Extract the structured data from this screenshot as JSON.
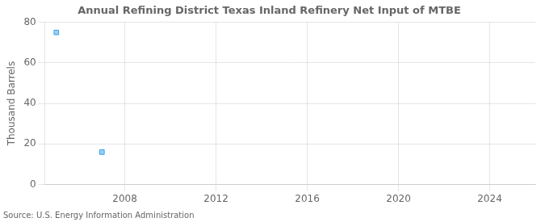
{
  "chart_data": {
    "type": "scatter",
    "title": "Annual Refining District Texas Inland Refinery Net Input of MTBE",
    "ylabel": "Thousand Barrels",
    "annotations": [
      "Source: U.S. Energy Information Administration"
    ],
    "x": [
      2005,
      2007
    ],
    "values": [
      75,
      16
    ],
    "marker": "square",
    "xlim": [
      2004.5,
      2026
    ],
    "xticks": [
      2008,
      2012,
      2016,
      2020,
      2024
    ],
    "ylim": [
      0,
      80
    ],
    "yticks": [
      0,
      20,
      40,
      60,
      80
    ],
    "grid": true
  }
}
